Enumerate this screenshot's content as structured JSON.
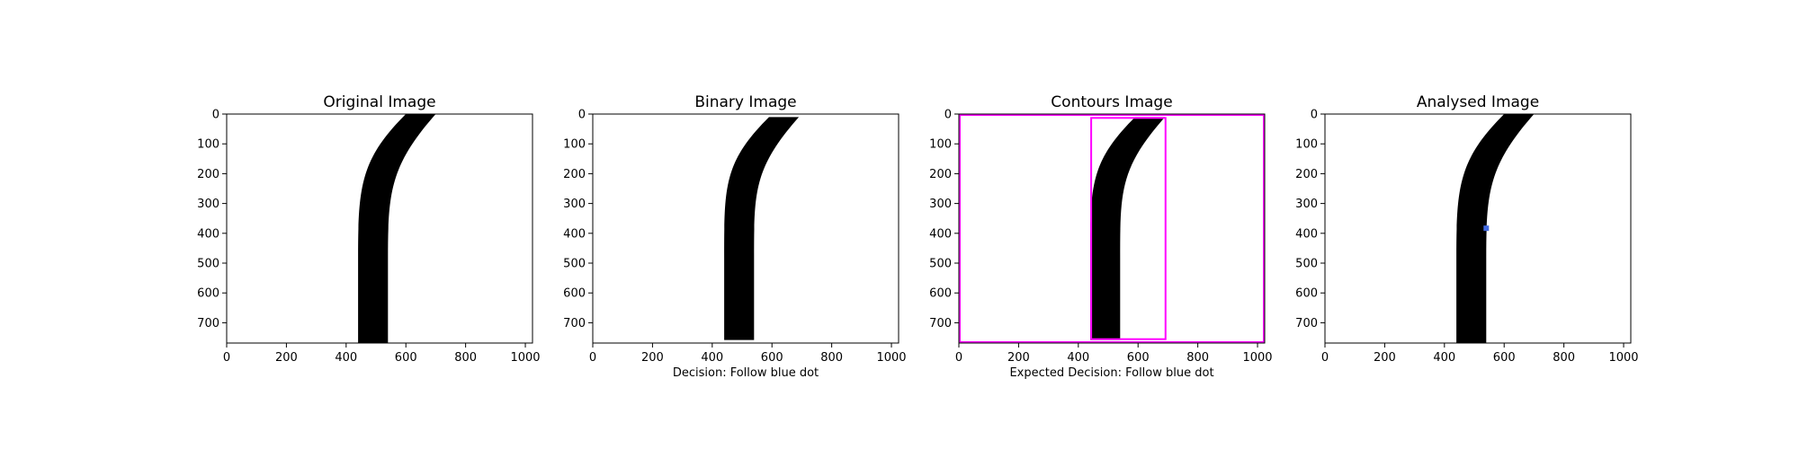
{
  "chart_data": [
    {
      "type": "image",
      "title": "Original Image",
      "xlabel": "",
      "xlim": [
        0,
        1024
      ],
      "ylim": [
        768,
        0
      ],
      "xticks": [
        0,
        200,
        400,
        600,
        800,
        1000
      ],
      "yticks": [
        0,
        100,
        200,
        300,
        400,
        500,
        600,
        700
      ],
      "road": {
        "straight_y": [
          768,
          480
        ],
        "straight_x": [
          440,
          540
        ],
        "curve_top_y": 0,
        "curve_top_x": [
          600,
          700
        ]
      }
    },
    {
      "type": "image",
      "title": "Binary Image",
      "xlabel": "Decision: Follow blue dot",
      "xlim": [
        0,
        1024
      ],
      "ylim": [
        768,
        0
      ],
      "xticks": [
        0,
        200,
        400,
        600,
        800,
        1000
      ],
      "yticks": [
        0,
        100,
        200,
        300,
        400,
        500,
        600,
        700
      ],
      "road": {
        "straight_y": [
          758,
          480
        ],
        "straight_x": [
          440,
          540
        ],
        "curve_top_y": 10,
        "curve_top_x": [
          590,
          690
        ]
      }
    },
    {
      "type": "image",
      "title": "Contours Image",
      "xlabel": "Expected Decision: Follow blue dot",
      "xlim": [
        0,
        1024
      ],
      "ylim": [
        768,
        0
      ],
      "xticks": [
        0,
        200,
        400,
        600,
        800,
        1000
      ],
      "yticks": [
        0,
        100,
        200,
        300,
        400,
        500,
        600,
        700
      ],
      "road": {
        "straight_y": [
          758,
          480
        ],
        "straight_x": [
          440,
          540
        ],
        "curve_top_y": 10,
        "curve_top_x": [
          590,
          690
        ]
      },
      "boxes": [
        {
          "x0": 0,
          "y0": 0,
          "x1": 1024,
          "y1": 768
        },
        {
          "x0": 440,
          "y0": 10,
          "x1": 695,
          "y1": 758
        }
      ],
      "box_color": "#ff00ff"
    },
    {
      "type": "image",
      "title": "Analysed Image",
      "xlabel": "",
      "xlim": [
        0,
        1024
      ],
      "ylim": [
        768,
        0
      ],
      "xticks": [
        0,
        200,
        400,
        600,
        800,
        1000
      ],
      "yticks": [
        0,
        100,
        200,
        300,
        400,
        500,
        600,
        700
      ],
      "road": {
        "straight_y": [
          768,
          480
        ],
        "straight_x": [
          440,
          540
        ],
        "curve_top_y": 0,
        "curve_top_x": [
          600,
          700
        ]
      },
      "dot": {
        "x": 540,
        "y": 383,
        "color": "#4169e1"
      }
    }
  ]
}
